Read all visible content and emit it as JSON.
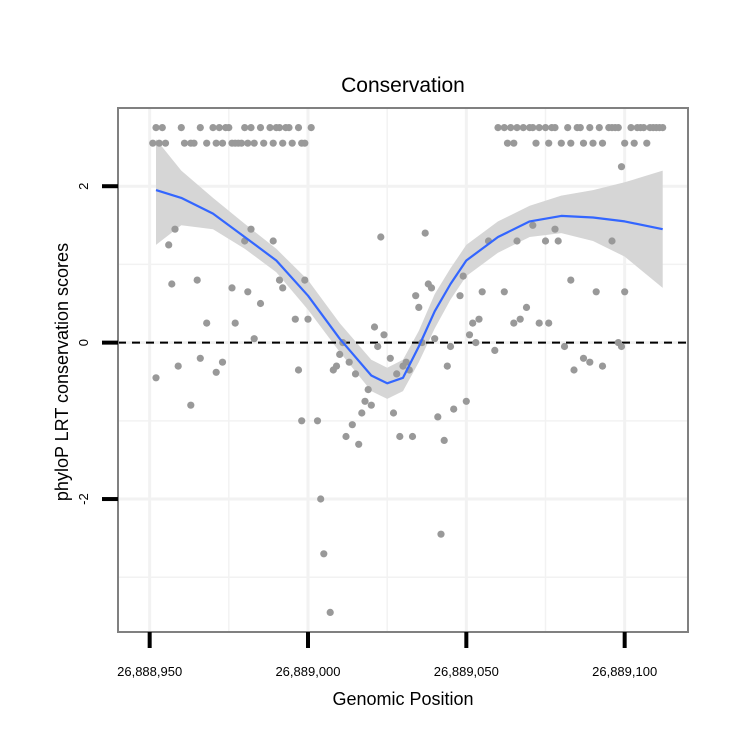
{
  "chart_data": {
    "type": "scatter",
    "title": "Conservation",
    "xlabel": "Genomic Position",
    "ylabel": "phyloP LRT conservation scores",
    "xlim": [
      26888940,
      26889120
    ],
    "ylim": [
      -3.7,
      3.0
    ],
    "x_ticks": [
      26888950,
      26889000,
      26889050,
      26889100
    ],
    "x_tick_labels": [
      "26,888,950",
      "26,889,000",
      "26,889,050",
      "26,889,100"
    ],
    "y_ticks": [
      -2,
      0,
      2
    ],
    "y_tick_labels": [
      "-2",
      "0",
      "2"
    ],
    "reference_line": {
      "y": 0,
      "style": "dashed",
      "color": "#000000"
    },
    "grid": true,
    "colors": {
      "points": "#999999",
      "smooth": "#3366ff",
      "band": "#d6d6d6",
      "panel_border": "#808080",
      "grid": "#f2f2f2"
    },
    "series": [
      {
        "kind": "points",
        "points": [
          [
            26888952,
            2.75
          ],
          [
            26888954,
            2.75
          ],
          [
            26888951,
            2.55
          ],
          [
            26888953,
            2.55
          ],
          [
            26888955,
            2.55
          ],
          [
            26888960,
            2.75
          ],
          [
            26888961,
            2.55
          ],
          [
            26888963,
            2.55
          ],
          [
            26888964,
            2.55
          ],
          [
            26888966,
            2.75
          ],
          [
            26888968,
            2.55
          ],
          [
            26888970,
            2.75
          ],
          [
            26888971,
            2.55
          ],
          [
            26888972,
            2.75
          ],
          [
            26888973,
            2.55
          ],
          [
            26888974,
            2.75
          ],
          [
            26888975,
            2.75
          ],
          [
            26888976,
            2.55
          ],
          [
            26888977,
            2.55
          ],
          [
            26888978,
            2.55
          ],
          [
            26888979,
            2.55
          ],
          [
            26888980,
            2.75
          ],
          [
            26888981,
            2.55
          ],
          [
            26888982,
            2.75
          ],
          [
            26888983,
            2.55
          ],
          [
            26888985,
            2.75
          ],
          [
            26888986,
            2.55
          ],
          [
            26888988,
            2.75
          ],
          [
            26888989,
            2.55
          ],
          [
            26888990,
            2.75
          ],
          [
            26888991,
            2.75
          ],
          [
            26888992,
            2.55
          ],
          [
            26888993,
            2.75
          ],
          [
            26888994,
            2.75
          ],
          [
            26888995,
            2.55
          ],
          [
            26888997,
            2.75
          ],
          [
            26888998,
            2.55
          ],
          [
            26888999,
            2.55
          ],
          [
            26889001,
            2.75
          ],
          [
            26889060,
            2.75
          ],
          [
            26889062,
            2.75
          ],
          [
            26889063,
            2.55
          ],
          [
            26889064,
            2.75
          ],
          [
            26889065,
            2.55
          ],
          [
            26889066,
            2.75
          ],
          [
            26889068,
            2.75
          ],
          [
            26889070,
            2.75
          ],
          [
            26889071,
            2.75
          ],
          [
            26889072,
            2.55
          ],
          [
            26889073,
            2.75
          ],
          [
            26889075,
            2.75
          ],
          [
            26889076,
            2.55
          ],
          [
            26889077,
            2.75
          ],
          [
            26889078,
            2.75
          ],
          [
            26889080,
            2.55
          ],
          [
            26889082,
            2.75
          ],
          [
            26889083,
            2.55
          ],
          [
            26889085,
            2.75
          ],
          [
            26889086,
            2.75
          ],
          [
            26889087,
            2.55
          ],
          [
            26889089,
            2.75
          ],
          [
            26889090,
            2.55
          ],
          [
            26889092,
            2.75
          ],
          [
            26889093,
            2.55
          ],
          [
            26889095,
            2.75
          ],
          [
            26889096,
            2.75
          ],
          [
            26889097,
            2.75
          ],
          [
            26889098,
            2.75
          ],
          [
            26889100,
            2.55
          ],
          [
            26889102,
            2.75
          ],
          [
            26889103,
            2.55
          ],
          [
            26889104,
            2.75
          ],
          [
            26889105,
            2.75
          ],
          [
            26889106,
            2.75
          ],
          [
            26889107,
            2.55
          ],
          [
            26889108,
            2.75
          ],
          [
            26889109,
            2.75
          ],
          [
            26889110,
            2.75
          ],
          [
            26889111,
            2.75
          ],
          [
            26889112,
            2.75
          ],
          [
            26889099,
            2.25
          ],
          [
            26888952,
            -0.45
          ],
          [
            26888956,
            1.25
          ],
          [
            26888958,
            1.45
          ],
          [
            26888957,
            0.75
          ],
          [
            26888959,
            -0.3
          ],
          [
            26888963,
            -0.8
          ],
          [
            26888965,
            0.8
          ],
          [
            26888966,
            -0.2
          ],
          [
            26888968,
            0.25
          ],
          [
            26888971,
            -0.38
          ],
          [
            26888973,
            -0.25
          ],
          [
            26888976,
            0.7
          ],
          [
            26888977,
            0.25
          ],
          [
            26888980,
            1.3
          ],
          [
            26888981,
            0.65
          ],
          [
            26888982,
            1.45
          ],
          [
            26888983,
            0.05
          ],
          [
            26888985,
            0.5
          ],
          [
            26888989,
            1.3
          ],
          [
            26888991,
            0.8
          ],
          [
            26888992,
            0.7
          ],
          [
            26888996,
            0.3
          ],
          [
            26888997,
            -0.35
          ],
          [
            26888998,
            -1.0
          ],
          [
            26888999,
            0.8
          ],
          [
            26889000,
            0.3
          ],
          [
            26889003,
            -1.0
          ],
          [
            26889004,
            -2.0
          ],
          [
            26889005,
            -2.7
          ],
          [
            26889007,
            -3.45
          ],
          [
            26889008,
            -0.35
          ],
          [
            26889009,
            -0.3
          ],
          [
            26889010,
            -0.15
          ],
          [
            26889011,
            0.0
          ],
          [
            26889012,
            -1.2
          ],
          [
            26889013,
            -0.25
          ],
          [
            26889014,
            -1.05
          ],
          [
            26889015,
            -0.4
          ],
          [
            26889016,
            -1.3
          ],
          [
            26889017,
            -0.9
          ],
          [
            26889018,
            -0.75
          ],
          [
            26889019,
            -0.6
          ],
          [
            26889020,
            -0.8
          ],
          [
            26889021,
            0.2
          ],
          [
            26889022,
            -0.05
          ],
          [
            26889023,
            1.35
          ],
          [
            26889024,
            0.1
          ],
          [
            26889026,
            -0.2
          ],
          [
            26889027,
            -0.9
          ],
          [
            26889028,
            -0.4
          ],
          [
            26889029,
            -1.2
          ],
          [
            26889030,
            -0.3
          ],
          [
            26889031,
            -0.25
          ],
          [
            26889032,
            -0.35
          ],
          [
            26889033,
            -1.2
          ],
          [
            26889034,
            0.6
          ],
          [
            26889035,
            0.45
          ],
          [
            26889036,
            0.0
          ],
          [
            26889037,
            1.4
          ],
          [
            26889038,
            0.75
          ],
          [
            26889039,
            0.7
          ],
          [
            26889040,
            0.05
          ],
          [
            26889041,
            -0.95
          ],
          [
            26889042,
            -2.45
          ],
          [
            26889043,
            -1.25
          ],
          [
            26889044,
            -0.3
          ],
          [
            26889045,
            -0.05
          ],
          [
            26889046,
            -0.85
          ],
          [
            26889048,
            0.6
          ],
          [
            26889049,
            0.85
          ],
          [
            26889050,
            -0.75
          ],
          [
            26889051,
            0.1
          ],
          [
            26889052,
            0.25
          ],
          [
            26889053,
            0.0
          ],
          [
            26889054,
            0.3
          ],
          [
            26889055,
            0.65
          ],
          [
            26889057,
            1.3
          ],
          [
            26889059,
            -0.1
          ],
          [
            26889062,
            0.65
          ],
          [
            26889065,
            0.25
          ],
          [
            26889066,
            1.3
          ],
          [
            26889067,
            0.3
          ],
          [
            26889069,
            0.45
          ],
          [
            26889071,
            1.5
          ],
          [
            26889073,
            0.25
          ],
          [
            26889075,
            1.3
          ],
          [
            26889076,
            0.25
          ],
          [
            26889078,
            1.45
          ],
          [
            26889079,
            1.3
          ],
          [
            26889081,
            -0.05
          ],
          [
            26889083,
            0.8
          ],
          [
            26889084,
            -0.35
          ],
          [
            26889087,
            -0.2
          ],
          [
            26889089,
            -0.25
          ],
          [
            26889091,
            0.65
          ],
          [
            26889093,
            -0.3
          ],
          [
            26889096,
            1.3
          ],
          [
            26889098,
            0.0
          ],
          [
            26889099,
            -0.05
          ],
          [
            26889100,
            0.65
          ]
        ]
      },
      {
        "kind": "smooth",
        "x": [
          26888952,
          26888960,
          26888970,
          26888980,
          26888990,
          26889000,
          26889010,
          26889020,
          26889025,
          26889030,
          26889035,
          26889040,
          26889045,
          26889050,
          26889060,
          26889070,
          26889080,
          26889090,
          26889100,
          26889112
        ],
        "y": [
          1.95,
          1.85,
          1.65,
          1.35,
          1.05,
          0.6,
          0.05,
          -0.42,
          -0.52,
          -0.45,
          -0.05,
          0.4,
          0.75,
          1.05,
          1.35,
          1.55,
          1.62,
          1.6,
          1.55,
          1.45
        ],
        "lower": [
          1.25,
          1.5,
          1.45,
          1.2,
          0.9,
          0.42,
          -0.12,
          -0.62,
          -0.72,
          -0.62,
          -0.25,
          0.18,
          0.55,
          0.85,
          1.15,
          1.35,
          1.4,
          1.3,
          1.1,
          0.7
        ],
        "upper": [
          2.6,
          2.2,
          1.85,
          1.52,
          1.2,
          0.8,
          0.25,
          -0.22,
          -0.32,
          -0.22,
          0.15,
          0.62,
          0.95,
          1.25,
          1.55,
          1.75,
          1.88,
          1.95,
          2.05,
          2.2
        ]
      }
    ]
  }
}
